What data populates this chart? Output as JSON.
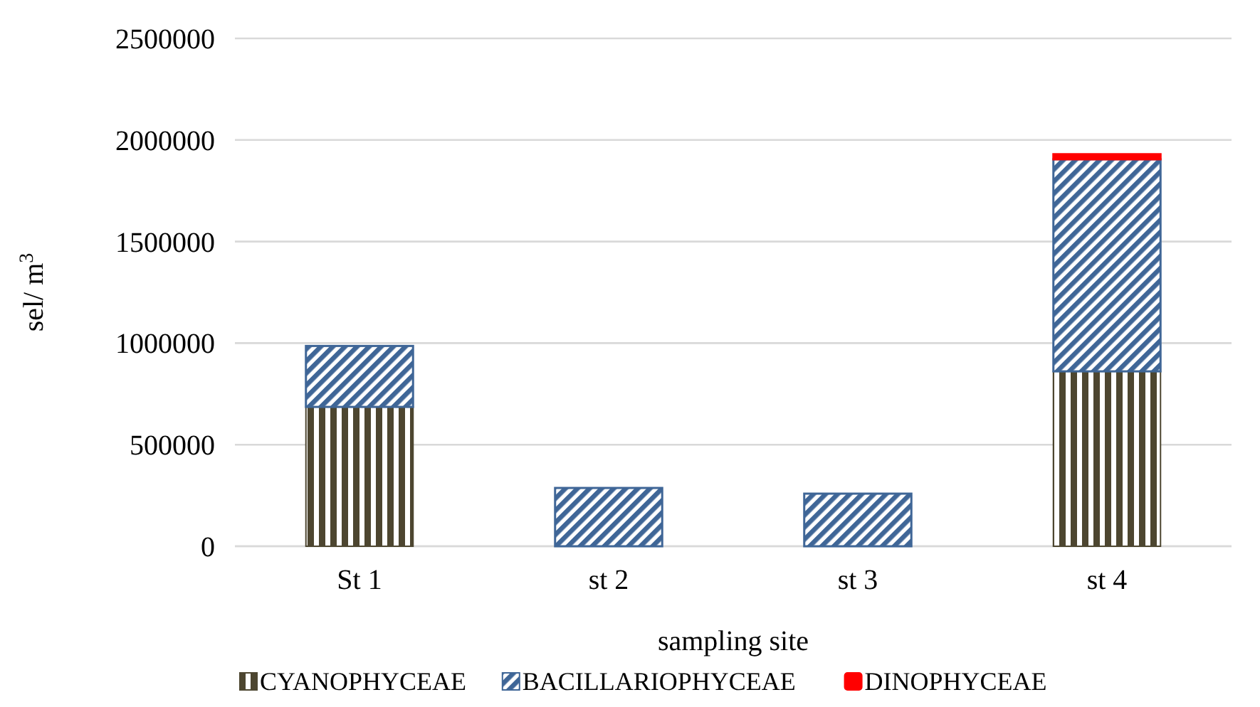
{
  "chart_data": {
    "type": "bar",
    "stacked": true,
    "categories": [
      "St 1",
      "st 2",
      "st 3",
      "st 4"
    ],
    "series": [
      {
        "name": "CYANOPHYCEAE",
        "color": "#4d4630",
        "values": [
          686000,
          0,
          0,
          861000
        ]
      },
      {
        "name": "BACILLARIOPHYCEAE",
        "color": "#3f6697",
        "values": [
          300000,
          287000,
          259000,
          1044000
        ]
      },
      {
        "name": "DINOPHYCEAE",
        "color": "#ff0000",
        "values": [
          0,
          0,
          0,
          25000
        ]
      }
    ],
    "ylim": [
      0,
      2500000
    ],
    "yticks": [
      0,
      500000,
      1000000,
      1500000,
      2000000,
      2500000
    ],
    "grid": "y",
    "legend": "bottom",
    "xlabel": "sampling site",
    "ylabel": "sel/ m$^{3}$"
  }
}
